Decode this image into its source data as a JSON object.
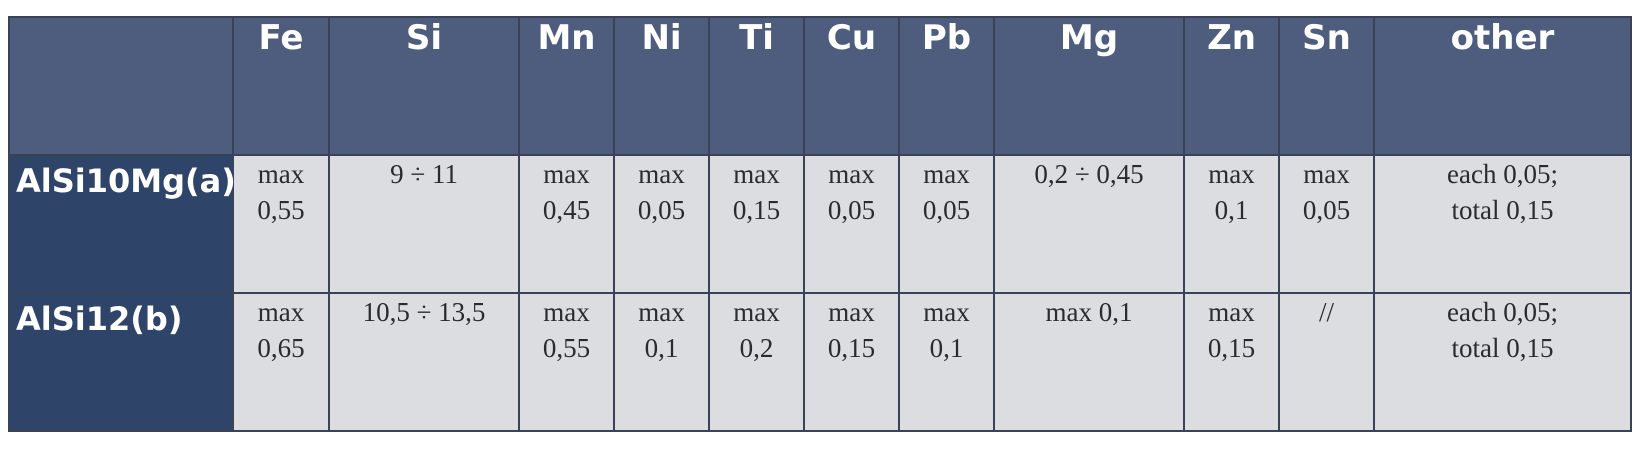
{
  "table": {
    "columns": [
      "",
      "Fe",
      "Si",
      "Mn",
      "Ni",
      "Ti",
      "Cu",
      "Pb",
      "Mg",
      "Zn",
      "Sn",
      "other"
    ],
    "rows": [
      {
        "label": "AlSi10Mg(a)",
        "cells": [
          [
            "max",
            "0,55"
          ],
          [
            "9 ÷ 11"
          ],
          [
            "max",
            "0,45"
          ],
          [
            "max",
            "0,05"
          ],
          [
            "max",
            "0,15"
          ],
          [
            "max",
            "0,05"
          ],
          [
            "max",
            "0,05"
          ],
          [
            "0,2 ÷ 0,45"
          ],
          [
            "max",
            "0,1"
          ],
          [
            "max",
            "0,05"
          ],
          [
            "each  0,05;",
            "total 0,15"
          ]
        ]
      },
      {
        "label": "AlSi12(b)",
        "cells": [
          [
            "max",
            "0,65"
          ],
          [
            "10,5 ÷ 13,5"
          ],
          [
            "max",
            "0,55"
          ],
          [
            "max",
            "0,1"
          ],
          [
            "max",
            "0,2"
          ],
          [
            "max",
            "0,15"
          ],
          [
            "max",
            "0,1"
          ],
          [
            "max 0,1"
          ],
          [
            "max",
            "0,15"
          ],
          [
            "//"
          ],
          [
            "each  0,05;",
            "total 0,15"
          ]
        ]
      }
    ]
  }
}
